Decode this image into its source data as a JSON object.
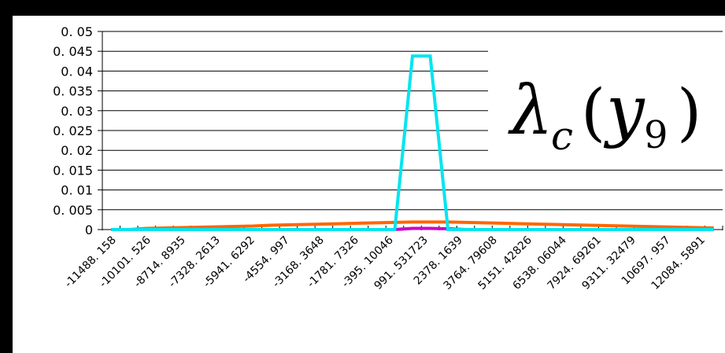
{
  "chart_data": {
    "type": "line",
    "title": "",
    "xlabel": "",
    "ylabel": "",
    "ylim": [
      0,
      0.05
    ],
    "y_ticks": [
      "0",
      "0. 005",
      "0. 01",
      "0. 015",
      "0. 02",
      "0. 025",
      "0. 03",
      "0. 035",
      "0. 04",
      "0. 045",
      "0. 05"
    ],
    "y_tick_values": [
      0,
      0.005,
      0.01,
      0.015,
      0.02,
      0.025,
      0.03,
      0.035,
      0.04,
      0.045,
      0.05
    ],
    "x_tick_labels": [
      "-11488. 158",
      "-10101. 526",
      "-8714. 8935",
      "-7328. 2613",
      "-5941. 6292",
      "-4554. 997",
      "-3168. 3648",
      "-1781. 7326",
      "-395. 10046",
      "991. 531723",
      "2378. 1639",
      "3764. 79608",
      "5151. 42826",
      "6538. 06044",
      "7924. 69261",
      "9311. 32479",
      "10697. 957",
      "12084. 5891"
    ],
    "n_points": 35,
    "series": [
      {
        "color": "#00e5ee",
        "values": [
          0,
          0,
          0,
          0,
          0,
          0,
          0,
          0,
          0,
          0,
          0,
          0,
          0,
          0,
          0,
          0,
          0,
          0.0438,
          0.0438,
          0,
          0,
          0,
          0,
          0,
          0,
          0,
          0,
          0,
          0,
          0,
          0,
          0,
          0,
          0,
          0
        ]
      },
      {
        "color": "#ff6600",
        "values": [
          0,
          0,
          0.0003,
          0.0004,
          0.0005,
          0.0006,
          0.0007,
          0.0008,
          0.0009,
          0.0011,
          0.0012,
          0.0013,
          0.0014,
          0.0015,
          0.0016,
          0.0017,
          0.0018,
          0.0019,
          0.0019,
          0.0019,
          0.0018,
          0.0017,
          0.0016,
          0.0015,
          0.0014,
          0.0013,
          0.0012,
          0.0011,
          0.001,
          0.0009,
          0.0008,
          0.0007,
          0.0006,
          0.0005,
          0.0004
        ]
      },
      {
        "color": "#cc00cc",
        "values": [
          0,
          0,
          0,
          0,
          0,
          0,
          0,
          0,
          0,
          0,
          0,
          0,
          0,
          0,
          0,
          0,
          0,
          0.0003,
          0.0003,
          0.0002,
          0,
          0,
          0,
          0,
          0,
          0,
          0,
          0,
          0,
          0,
          0,
          0,
          0,
          0,
          0
        ]
      }
    ],
    "grid": true,
    "legend": "none",
    "annotation": {
      "lambda": "λ",
      "sub_c": "c",
      "open_paren": "(",
      "y": "y",
      "sub_9": "9",
      "close_paren": ")"
    },
    "colors": {
      "background": "#000000",
      "plot_area": "#ffffff",
      "gridline": "#000000"
    }
  }
}
